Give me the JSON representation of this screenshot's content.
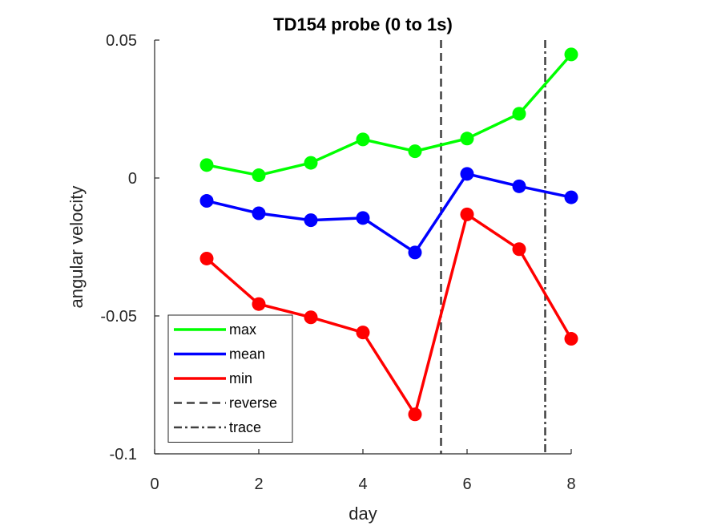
{
  "chart_data": {
    "type": "line",
    "title": "TD154 probe (0 to 1s)",
    "xlabel": "day",
    "ylabel": "angular velocity",
    "xlim": [
      0,
      8
    ],
    "ylim": [
      -0.1,
      0.05
    ],
    "xticks": [
      0,
      2,
      4,
      6,
      8
    ],
    "xtick_labels": [
      "0",
      "2",
      "4",
      "6",
      "8"
    ],
    "yticks": [
      -0.1,
      -0.05,
      0,
      0.05
    ],
    "ytick_labels": [
      "-0.1",
      "-0.05",
      "0",
      "0.05"
    ],
    "grid": false,
    "legend_position": "bottom-left",
    "x": [
      1,
      2,
      3,
      4,
      5,
      6,
      7,
      8
    ],
    "series": [
      {
        "name": "max",
        "color": "#00ff00",
        "values": [
          0.0047,
          0.001,
          0.0055,
          0.014,
          0.0097,
          0.0143,
          0.0233,
          0.0448
        ]
      },
      {
        "name": "mean",
        "color": "#0000ff",
        "values": [
          -0.0083,
          -0.0128,
          -0.0153,
          -0.0145,
          -0.027,
          0.0015,
          -0.003,
          -0.007
        ]
      },
      {
        "name": "min",
        "color": "#ff0000",
        "values": [
          -0.0292,
          -0.0457,
          -0.0505,
          -0.056,
          -0.0857,
          -0.0132,
          -0.0258,
          -0.0583
        ]
      }
    ],
    "vlines": [
      {
        "name": "reverse",
        "x": 5.5,
        "style": "dashed",
        "color": "#404040"
      },
      {
        "name": "trace",
        "x": 7.5,
        "style": "dashdot",
        "color": "#404040"
      }
    ]
  }
}
